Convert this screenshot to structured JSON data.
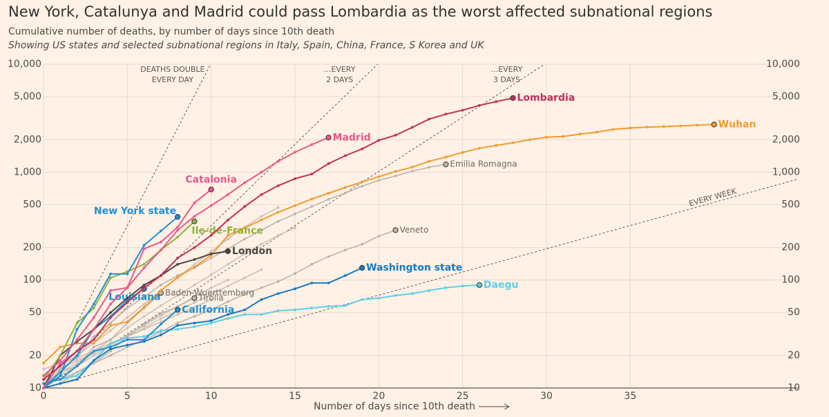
{
  "chart_data": {
    "type": "line",
    "title": "New York, Catalunya and Madrid could pass Lombardia as the worst affected subnational regions",
    "subtitle": "Cumulative number of deaths, by number of days since 10th death",
    "subtitle2": "Showing US states and selected subnational regions in Italy, Spain, China, France, S Korea and UK",
    "x_label": "Number of days since 10th death",
    "log_y": true,
    "grid": true,
    "xlim": [
      0,
      45
    ],
    "xticks": [
      0,
      5,
      10,
      15,
      20,
      25,
      30,
      35
    ],
    "ylim": [
      10,
      10000
    ],
    "yticks": [
      10,
      20,
      50,
      100,
      200,
      500,
      {
        "value": 1000,
        "label": "1,000"
      },
      {
        "value": 2000,
        "label": "2,000"
      },
      {
        "value": 5000,
        "label": "5,000"
      },
      {
        "value": 10000,
        "label": "10,000"
      }
    ],
    "guides": [
      {
        "label": [
          "DEATHS DOUBLE",
          "EVERY DAY"
        ],
        "days": 1
      },
      {
        "label": [
          "...EVERY",
          "2 DAYS"
        ],
        "days": 2
      },
      {
        "label": [
          "...EVERY",
          "3 DAYS"
        ],
        "days": 3
      },
      {
        "label": [
          "EVERY WEEK"
        ],
        "days": 7
      }
    ],
    "x": [
      0,
      1,
      2,
      3,
      4,
      5,
      6,
      7,
      8,
      9,
      10,
      11,
      12,
      13,
      14,
      15,
      16,
      17,
      18,
      19,
      20,
      21,
      22,
      23,
      24,
      25,
      26,
      27,
      28,
      29,
      30,
      31,
      32,
      33,
      34,
      35,
      36,
      37,
      38,
      39,
      40
    ],
    "series": [
      {
        "color": "#cbc1b9",
        "values": [
          12,
          16,
          20,
          26,
          34,
          45,
          60,
          80,
          105,
          140,
          185,
          240,
          310,
          390,
          470,
          null,
          null,
          null,
          null,
          null,
          null,
          null,
          null,
          null,
          null,
          null,
          null,
          null,
          null,
          null,
          null,
          null,
          null,
          null,
          null,
          null,
          null,
          null,
          null,
          null,
          null
        ]
      },
      {
        "color": "#cbc1b9",
        "values": [
          11,
          14,
          17,
          22,
          28,
          36,
          46,
          58,
          72,
          90,
          112,
          140,
          175,
          215,
          260,
          305,
          null,
          null,
          null,
          null,
          null,
          null,
          null,
          null,
          null,
          null,
          null,
          null,
          null,
          null,
          null,
          null,
          null,
          null,
          null,
          null,
          null,
          null,
          null,
          null,
          null
        ]
      },
      {
        "color": "#cbc1b9",
        "values": [
          13,
          15,
          18,
          21,
          25,
          30,
          36,
          44,
          52,
          62,
          74,
          88,
          105,
          125,
          null,
          null,
          null,
          null,
          null,
          null,
          null,
          null,
          null,
          null,
          null,
          null,
          null,
          null,
          null,
          null,
          null,
          null,
          null,
          null,
          null,
          null,
          null,
          null,
          null,
          null,
          null
        ]
      },
      {
        "color": "#cbc1b9",
        "values": [
          10,
          13,
          16,
          20,
          25,
          31,
          38,
          47,
          57,
          70,
          85,
          100,
          null,
          null,
          null,
          null,
          null,
          null,
          null,
          null,
          null,
          null,
          null,
          null,
          null,
          null,
          null,
          null,
          null,
          null,
          null,
          null,
          null,
          null,
          null,
          null,
          null,
          null,
          null,
          null,
          null
        ]
      },
      {
        "color": "#cbc1b9",
        "values": [
          15,
          17,
          19,
          22,
          26,
          30,
          35,
          41,
          48,
          56,
          66,
          null,
          null,
          null,
          null,
          null,
          null,
          null,
          null,
          null,
          null,
          null,
          null,
          null,
          null,
          null,
          null,
          null,
          null,
          null,
          null,
          null,
          null,
          null,
          null,
          null,
          null,
          null,
          null,
          null,
          null
        ]
      },
      {
        "name": "Emilia Romagna",
        "color": "#bdb3ab",
        "values": [
          10,
          15,
          19,
          30,
          40,
          55,
          70,
          90,
          110,
          130,
          160,
          195,
          240,
          290,
          350,
          410,
          480,
          560,
          640,
          740,
          840,
          920,
          1020,
          1110,
          1180,
          null,
          null,
          null,
          null,
          null,
          null,
          null,
          null,
          null,
          null,
          null,
          null,
          null,
          null,
          null,
          null
        ]
      },
      {
        "name": "Veneto",
        "color": "#bdb3ab",
        "values": [
          12,
          12,
          14,
          17,
          20,
          24,
          28,
          33,
          40,
          46,
          53,
          63,
          74,
          85,
          97,
          115,
          140,
          165,
          190,
          215,
          255,
          290,
          null,
          null,
          null,
          null,
          null,
          null,
          null,
          null,
          null,
          null,
          null,
          null,
          null,
          null,
          null,
          null,
          null,
          null,
          null
        ]
      },
      {
        "name": "Baden-Wuerttemberg",
        "color": "#bdb3ab",
        "values": [
          11,
          14,
          16,
          24,
          28,
          40,
          55,
          76,
          null,
          null,
          null,
          null,
          null,
          null,
          null,
          null,
          null,
          null,
          null,
          null,
          null,
          null,
          null,
          null,
          null,
          null,
          null,
          null,
          null,
          null,
          null,
          null,
          null,
          null,
          null,
          null,
          null,
          null,
          null,
          null,
          null
        ]
      },
      {
        "name": "Tirolia",
        "color": "#bdb3ab",
        "values": [
          10,
          11,
          14,
          17,
          22,
          30,
          39,
          49,
          57,
          68,
          null,
          null,
          null,
          null,
          null,
          null,
          null,
          null,
          null,
          null,
          null,
          null,
          null,
          null,
          null,
          null,
          null,
          null,
          null,
          null,
          null,
          null,
          null,
          null,
          null,
          null,
          null,
          null,
          null,
          null,
          null
        ]
      },
      {
        "name": "Wuhan",
        "color": "#f29b30",
        "values": [
          17,
          24,
          26,
          26,
          38,
          41,
          56,
          80,
          106,
          132,
          170,
          259,
          304,
          361,
          425,
          490,
          564,
          637,
          722,
          811,
          908,
          1016,
          1113,
          1259,
          1380,
          1523,
          1665,
          1770,
          1868,
          1999,
          2104,
          2143,
          2250,
          2346,
          2495,
          2563,
          2615,
          2641,
          2682,
          2727,
          2761
        ]
      },
      {
        "name": "Daegu",
        "color": "#5ccfe6",
        "values": [
          11,
          12,
          13,
          18,
          26,
          29,
          30,
          34,
          35,
          37,
          40,
          44,
          48,
          48,
          52,
          53,
          55,
          57,
          58,
          66,
          68,
          72,
          75,
          80,
          85,
          88,
          90,
          null,
          null,
          null,
          null,
          null,
          null,
          null,
          null,
          null,
          null,
          null,
          null,
          null,
          null
        ]
      },
      {
        "name": "Washington state",
        "color": "#1679c4",
        "values": [
          10,
          11,
          12,
          18,
          23,
          25,
          27,
          31,
          38,
          40,
          42,
          48,
          53,
          66,
          75,
          83,
          94,
          94,
          110,
          130,
          null,
          null,
          null,
          null,
          null,
          null,
          null,
          null,
          null,
          null,
          null,
          null,
          null,
          null,
          null,
          null,
          null,
          null,
          null,
          null,
          null
        ]
      },
      {
        "name": "California",
        "color": "#1f8fd6",
        "values": [
          11,
          12,
          16,
          22,
          24,
          28,
          28,
          39,
          53,
          null,
          null,
          null,
          null,
          null,
          null,
          null,
          null,
          null,
          null,
          null,
          null,
          null,
          null,
          null,
          null,
          null,
          null,
          null,
          null,
          null,
          null,
          null,
          null,
          null,
          null,
          null,
          null,
          null,
          null,
          null,
          null
        ]
      },
      {
        "name": "Louisiana",
        "color": "#1b8fd6",
        "values": [
          10,
          14,
          20,
          35,
          46,
          65,
          83,
          null,
          null,
          null,
          null,
          null,
          null,
          null,
          null,
          null,
          null,
          null,
          null,
          null,
          null,
          null,
          null,
          null,
          null,
          null,
          null,
          null,
          null,
          null,
          null,
          null,
          null,
          null,
          null,
          null,
          null,
          null,
          null,
          null,
          null
        ]
      },
      {
        "name": "London",
        "color": "#4a4543",
        "values": [
          10,
          20,
          27,
          35,
          50,
          68,
          90,
          110,
          140,
          155,
          175,
          185,
          null,
          null,
          null,
          null,
          null,
          null,
          null,
          null,
          null,
          null,
          null,
          null,
          null,
          null,
          null,
          null,
          null,
          null,
          null,
          null,
          null,
          null,
          null,
          null,
          null,
          null,
          null,
          null,
          null
        ]
      },
      {
        "name": "Ile-de-France",
        "color": "#8db33a",
        "values": [
          12,
          20,
          40,
          55,
          105,
          120,
          140,
          190,
          250,
          350,
          null,
          null,
          null,
          null,
          null,
          null,
          null,
          null,
          null,
          null,
          null,
          null,
          null,
          null,
          null,
          null,
          null,
          null,
          null,
          null,
          null,
          null,
          null,
          null,
          null,
          null,
          null,
          null,
          null,
          null,
          null
        ]
      },
      {
        "name": "New York state",
        "color": "#1f8fd6",
        "values": [
          10,
          13,
          35,
          60,
          114,
          114,
          210,
          285,
          385,
          null,
          null,
          null,
          null,
          null,
          null,
          null,
          null,
          null,
          null,
          null,
          null,
          null,
          null,
          null,
          null,
          null,
          null,
          null,
          null,
          null,
          null,
          null,
          null,
          null,
          null,
          null,
          null,
          null,
          null,
          null,
          null
        ]
      },
      {
        "name": "Catalonia",
        "color": "#e8588a",
        "values": [
          13,
          18,
          28,
          45,
          80,
          85,
          195,
          225,
          310,
          520,
          690,
          null,
          null,
          null,
          null,
          null,
          null,
          null,
          null,
          null,
          null,
          null,
          null,
          null,
          null,
          null,
          null,
          null,
          null,
          null,
          null,
          null,
          null,
          null,
          null,
          null,
          null,
          null,
          null,
          null,
          null
        ]
      },
      {
        "name": "Madrid",
        "color": "#e8588a",
        "values": [
          10,
          17,
          22,
          35,
          60,
          85,
          130,
          190,
          290,
          390,
          490,
          620,
          800,
          1000,
          1260,
          1530,
          1800,
          2090,
          null,
          null,
          null,
          null,
          null,
          null,
          null,
          null,
          null,
          null,
          null,
          null,
          null,
          null,
          null,
          null,
          null,
          null,
          null,
          null,
          null,
          null,
          null
        ]
      },
      {
        "name": "Lombardia",
        "color": "#c0305a",
        "values": [
          12,
          16,
          22,
          28,
          45,
          62,
          85,
          110,
          160,
          200,
          260,
          360,
          480,
          620,
          750,
          870,
          960,
          1200,
          1420,
          1640,
          1970,
          2200,
          2600,
          3100,
          3450,
          3750,
          4150,
          4500,
          4860,
          null,
          null,
          null,
          null,
          null,
          null,
          null,
          null,
          null,
          null,
          null,
          null
        ]
      }
    ]
  }
}
